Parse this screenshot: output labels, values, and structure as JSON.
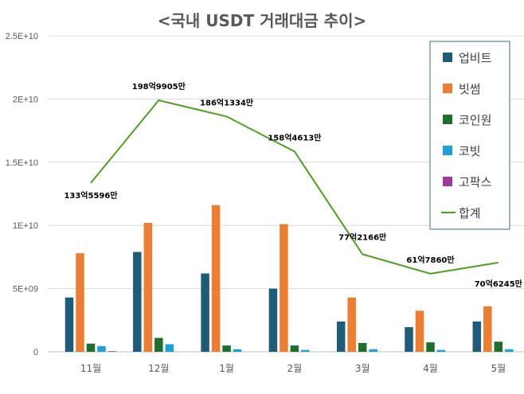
{
  "chart_data": {
    "type": "bar",
    "title": "<국내 USDT 거래대금 추이>",
    "categories": [
      "11월",
      "12월",
      "1월",
      "2월",
      "3월",
      "4월",
      "5월"
    ],
    "yticks": [
      "0",
      "5E+09",
      "1E+10",
      "1.5E+10",
      "2E+10",
      "2.5E+10"
    ],
    "ylim": [
      0,
      25000000000
    ],
    "grid": true,
    "legend_position": "right",
    "series": [
      {
        "name": "업비트",
        "type": "bar",
        "color": "#1F5C7A",
        "values": [
          4300000000,
          7900000000,
          6200000000,
          5000000000,
          2400000000,
          1950000000,
          2400000000
        ]
      },
      {
        "name": "빗썸",
        "type": "bar",
        "color": "#ED7D31",
        "values": [
          7800000000,
          10200000000,
          11600000000,
          10100000000,
          4300000000,
          3250000000,
          3600000000
        ]
      },
      {
        "name": "코인원",
        "type": "bar",
        "color": "#1E6E2E",
        "values": [
          650000000,
          1100000000,
          500000000,
          500000000,
          700000000,
          750000000,
          800000000
        ]
      },
      {
        "name": "코빗",
        "type": "bar",
        "color": "#1BA1D8",
        "values": [
          450000000,
          600000000,
          200000000,
          150000000,
          200000000,
          150000000,
          200000000
        ]
      },
      {
        "name": "고팍스",
        "type": "bar",
        "color": "#9F3A9C",
        "values": [
          50000000,
          0,
          0,
          0,
          0,
          0,
          0
        ]
      },
      {
        "name": "합계",
        "type": "line",
        "color": "#4DA01F",
        "values": [
          13355960000,
          19899050000,
          18613340000,
          15846130000,
          7721660000,
          6178600000,
          7062450000
        ]
      }
    ],
    "data_labels": [
      "133억5596만",
      "198억9905만",
      "186억1334만",
      "158억4613만",
      "77억2166만",
      "61억7860만",
      "70억6245만"
    ]
  }
}
